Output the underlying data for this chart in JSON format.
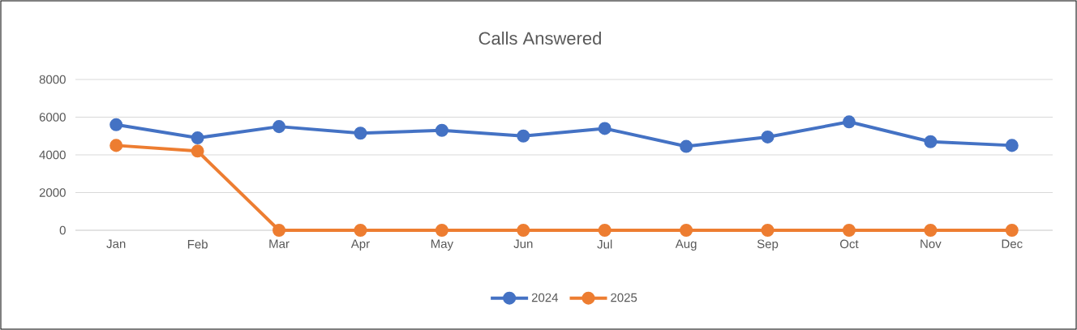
{
  "chart_data": {
    "type": "line",
    "title": "Calls Answered",
    "categories": [
      "Jan",
      "Feb",
      "Mar",
      "Apr",
      "May",
      "Jun",
      "Jul",
      "Aug",
      "Sep",
      "Oct",
      "Nov",
      "Dec"
    ],
    "series": [
      {
        "name": "2024",
        "color": "#4472c4",
        "values": [
          5600,
          4900,
          5500,
          5150,
          5300,
          5000,
          5400,
          4450,
          4950,
          5750,
          4700,
          4500
        ]
      },
      {
        "name": "2025",
        "color": "#ed7d31",
        "values": [
          4500,
          4200,
          0,
          0,
          0,
          0,
          0,
          0,
          0,
          0,
          0,
          0
        ]
      }
    ],
    "ylim": [
      0,
      8000
    ],
    "yticks": [
      0,
      2000,
      4000,
      6000,
      8000
    ],
    "grid": "y",
    "legend": "bottom",
    "marker": "circle",
    "line_style": "solid"
  }
}
